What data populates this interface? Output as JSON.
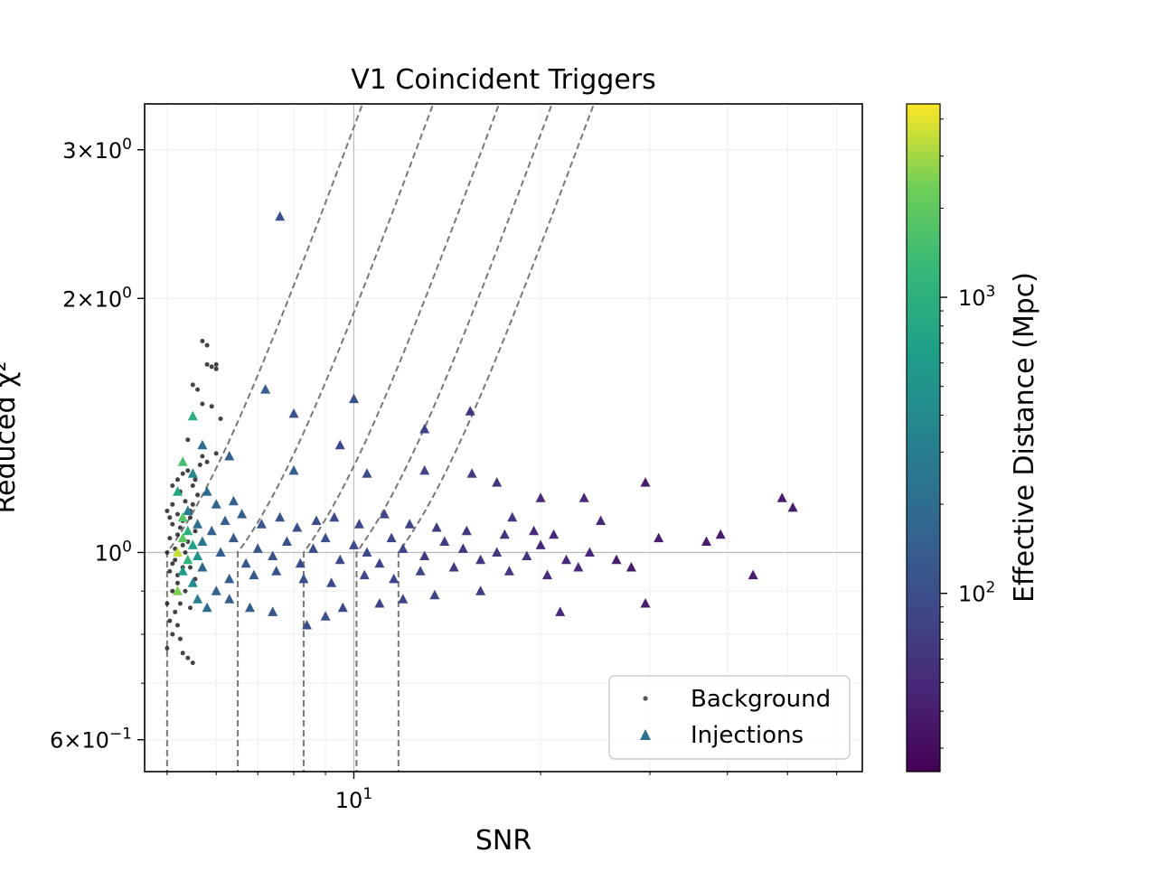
{
  "chart_data": {
    "type": "scatter",
    "title": "V1 Coincident Triggers",
    "xlabel": "SNR",
    "ylabel": "Reduced χ²",
    "xscale": "log",
    "yscale": "log",
    "xlim": [
      4.6,
      66
    ],
    "ylim": [
      0.55,
      3.4
    ],
    "x_ticks": [
      {
        "value": 10,
        "base": "10",
        "exp": "1"
      }
    ],
    "y_ticks": [
      {
        "value": 0.6,
        "mant": "6",
        "exp": "−1"
      },
      {
        "value": 1.0,
        "mant": "",
        "exp": "0"
      },
      {
        "value": 2.0,
        "mant": "2",
        "exp": "0"
      },
      {
        "value": 3.0,
        "mant": "3",
        "exp": "0"
      }
    ],
    "grid": true,
    "legend_position": "lower-right",
    "legend": [
      {
        "label": "Background",
        "marker": "dot",
        "color": "#555555"
      },
      {
        "label": "Injections",
        "marker": "triangle",
        "color": "#2c6f8e"
      }
    ],
    "colorbar": {
      "label": "Effective Distance (Mpc)",
      "scale": "log",
      "range": [
        25,
        4500
      ],
      "colormap": "viridis",
      "ticks": [
        {
          "value": 100,
          "base": "10",
          "exp": "2"
        },
        {
          "value": 1000,
          "base": "10",
          "exp": "3"
        }
      ]
    },
    "threshold_curves": [
      {
        "snr_cut": 5.0,
        "chisq_ref": 1.0
      },
      {
        "snr_cut": 6.5,
        "chisq_ref": 1.0
      },
      {
        "snr_cut": 8.3,
        "chisq_ref": 1.0
      },
      {
        "snr_cut": 10.1,
        "chisq_ref": 1.0
      },
      {
        "snr_cut": 11.8,
        "chisq_ref": 1.0
      }
    ],
    "series": [
      {
        "name": "Background",
        "marker": "dot",
        "color": "#222222",
        "points": [
          [
            5.7,
            1.78
          ],
          [
            5.8,
            1.76
          ],
          [
            5.8,
            1.67
          ],
          [
            5.9,
            1.66
          ],
          [
            6.0,
            1.67
          ],
          [
            6.0,
            1.65
          ],
          [
            5.5,
            1.58
          ],
          [
            5.6,
            1.56
          ],
          [
            5.7,
            1.5
          ],
          [
            5.9,
            1.49
          ],
          [
            6.1,
            1.44
          ],
          [
            5.7,
            1.3
          ],
          [
            5.8,
            1.28
          ],
          [
            6.0,
            1.31
          ],
          [
            5.4,
            1.36
          ],
          [
            5.3,
            1.24
          ],
          [
            5.2,
            1.22
          ],
          [
            5.1,
            1.2
          ],
          [
            5.0,
            1.12
          ],
          [
            5.1,
            1.08
          ],
          [
            5.2,
            1.05
          ],
          [
            5.3,
            1.02
          ],
          [
            5.15,
            0.98
          ],
          [
            5.05,
            0.95
          ],
          [
            5.2,
            0.92
          ],
          [
            5.1,
            0.9
          ],
          [
            5.0,
            0.87
          ],
          [
            5.15,
            0.85
          ],
          [
            5.05,
            0.83
          ],
          [
            5.2,
            0.82
          ],
          [
            5.1,
            0.8
          ],
          [
            5.25,
            0.79
          ],
          [
            5.0,
            0.77
          ],
          [
            5.3,
            0.76
          ],
          [
            5.4,
            0.75
          ],
          [
            5.5,
            0.74
          ],
          [
            5.35,
            1.15
          ],
          [
            5.45,
            1.1
          ],
          [
            5.55,
            1.06
          ],
          [
            5.25,
            1.18
          ],
          [
            5.4,
            1.25
          ],
          [
            5.5,
            1.2
          ],
          [
            5.1,
            1.14
          ],
          [
            5.2,
            1.11
          ],
          [
            5.3,
            1.09
          ],
          [
            5.45,
            0.96
          ],
          [
            5.55,
            0.93
          ],
          [
            5.35,
            0.9
          ],
          [
            5.25,
            0.87
          ],
          [
            5.45,
            0.86
          ],
          [
            5.6,
            0.88
          ],
          [
            5.15,
            1.01
          ],
          [
            5.05,
            1.04
          ],
          [
            5.35,
            1.0
          ],
          [
            5.5,
            1.14
          ],
          [
            5.6,
            1.17
          ],
          [
            5.4,
            1.03
          ],
          [
            5.3,
            0.96
          ],
          [
            5.2,
            0.94
          ],
          [
            5.1,
            0.97
          ],
          [
            5.25,
            1.07
          ],
          [
            5.45,
            1.12
          ],
          [
            5.55,
            1.22
          ],
          [
            5.65,
            1.27
          ],
          [
            5.0,
            1.0
          ],
          [
            5.05,
            1.1
          ]
        ]
      },
      {
        "name": "Injections",
        "marker": "triangle",
        "points": [
          [
            7.6,
            2.5,
            110
          ],
          [
            7.2,
            1.56,
            140
          ],
          [
            10.0,
            1.52,
            110
          ],
          [
            15.4,
            1.47,
            60
          ],
          [
            8.0,
            1.46,
            110
          ],
          [
            13.0,
            1.4,
            80
          ],
          [
            9.5,
            1.34,
            90
          ],
          [
            6.3,
            1.3,
            140
          ],
          [
            8.0,
            1.25,
            140
          ],
          [
            10.5,
            1.24,
            100
          ],
          [
            15.5,
            1.24,
            70
          ],
          [
            13.0,
            1.25,
            80
          ],
          [
            17.0,
            1.21,
            60
          ],
          [
            29.5,
            1.21,
            40
          ],
          [
            49,
            1.16,
            40
          ],
          [
            51,
            1.13,
            40
          ],
          [
            23.5,
            1.16,
            50
          ],
          [
            20.0,
            1.16,
            50
          ],
          [
            18.0,
            1.1,
            60
          ],
          [
            25.0,
            1.09,
            50
          ],
          [
            5.5,
            1.45,
            900
          ],
          [
            5.7,
            1.34,
            200
          ],
          [
            5.3,
            1.28,
            1500
          ],
          [
            5.5,
            1.24,
            400
          ],
          [
            5.2,
            1.18,
            800
          ],
          [
            5.4,
            1.12,
            300
          ],
          [
            5.6,
            1.08,
            200
          ],
          [
            5.3,
            1.04,
            2000
          ],
          [
            5.2,
            1.0,
            3500
          ],
          [
            5.4,
            0.98,
            1200
          ],
          [
            5.3,
            0.95,
            600
          ],
          [
            5.5,
            0.92,
            400
          ],
          [
            5.2,
            0.9,
            2500
          ],
          [
            5.6,
            0.88,
            300
          ],
          [
            5.8,
            0.86,
            200
          ],
          [
            6.0,
            0.9,
            150
          ],
          [
            6.3,
            0.88,
            140
          ],
          [
            6.8,
            0.86,
            130
          ],
          [
            7.4,
            0.85,
            120
          ],
          [
            8.4,
            0.82,
            100
          ],
          [
            9.0,
            0.84,
            100
          ],
          [
            9.6,
            0.86,
            90
          ],
          [
            11.0,
            0.87,
            80
          ],
          [
            12.0,
            0.88,
            80
          ],
          [
            13.5,
            0.89,
            80
          ],
          [
            16.0,
            0.9,
            70
          ],
          [
            21.5,
            0.85,
            50
          ],
          [
            29.5,
            0.87,
            40
          ],
          [
            44.0,
            0.94,
            40
          ],
          [
            37.0,
            1.03,
            40
          ],
          [
            39.0,
            1.05,
            40
          ],
          [
            31.0,
            1.04,
            40
          ],
          [
            28.0,
            0.96,
            40
          ],
          [
            26.5,
            0.98,
            40
          ],
          [
            24.0,
            1.0,
            50
          ],
          [
            22.0,
            0.98,
            50
          ],
          [
            20.0,
            1.02,
            50
          ],
          [
            19.0,
            0.99,
            60
          ],
          [
            17.0,
            1.0,
            60
          ],
          [
            16.0,
            0.98,
            60
          ],
          [
            15.0,
            1.01,
            60
          ],
          [
            14.0,
            1.03,
            70
          ],
          [
            13.0,
            0.99,
            70
          ],
          [
            12.0,
            1.01,
            80
          ],
          [
            11.5,
            1.04,
            80
          ],
          [
            11.0,
            0.97,
            80
          ],
          [
            10.5,
            1.0,
            90
          ],
          [
            10.0,
            1.02,
            90
          ],
          [
            9.5,
            0.98,
            90
          ],
          [
            9.0,
            1.04,
            100
          ],
          [
            8.6,
            1.01,
            100
          ],
          [
            8.2,
            0.97,
            100
          ],
          [
            7.8,
            1.03,
            110
          ],
          [
            7.4,
            0.99,
            110
          ],
          [
            7.0,
            1.01,
            120
          ],
          [
            6.7,
            0.97,
            120
          ],
          [
            6.4,
            1.04,
            130
          ],
          [
            6.1,
            1.0,
            140
          ],
          [
            5.9,
            1.06,
            150
          ],
          [
            5.7,
            0.96,
            160
          ],
          [
            6.2,
            1.09,
            150
          ],
          [
            6.6,
            1.11,
            140
          ],
          [
            7.1,
            1.08,
            120
          ],
          [
            7.6,
            1.1,
            110
          ],
          [
            8.1,
            1.07,
            100
          ],
          [
            8.7,
            1.09,
            100
          ],
          [
            9.3,
            1.1,
            90
          ],
          [
            10.2,
            1.08,
            90
          ],
          [
            11.2,
            1.11,
            80
          ],
          [
            12.3,
            1.08,
            80
          ],
          [
            13.6,
            1.07,
            70
          ],
          [
            15.2,
            1.06,
            60
          ],
          [
            17.5,
            1.05,
            60
          ],
          [
            19.5,
            1.06,
            50
          ],
          [
            21.0,
            1.05,
            50
          ],
          [
            6.3,
            0.93,
            140
          ],
          [
            6.9,
            0.94,
            130
          ],
          [
            7.5,
            0.95,
            110
          ],
          [
            8.3,
            0.93,
            100
          ],
          [
            9.2,
            0.92,
            90
          ],
          [
            10.4,
            0.94,
            90
          ],
          [
            11.6,
            0.93,
            80
          ],
          [
            12.8,
            0.95,
            80
          ],
          [
            14.5,
            0.96,
            70
          ],
          [
            17.8,
            0.95,
            60
          ],
          [
            20.5,
            0.94,
            50
          ],
          [
            23.0,
            0.96,
            50
          ],
          [
            5.8,
            1.18,
            200
          ],
          [
            6.0,
            1.14,
            180
          ],
          [
            6.4,
            1.15,
            150
          ],
          [
            5.5,
            1.02,
            700
          ],
          [
            5.4,
            1.06,
            1000
          ],
          [
            5.6,
            0.99,
            500
          ],
          [
            5.3,
            1.1,
            1800
          ],
          [
            5.7,
            1.03,
            250
          ]
        ]
      }
    ]
  }
}
